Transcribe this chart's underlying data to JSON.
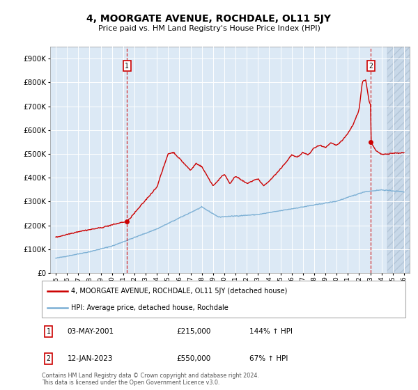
{
  "title": "4, MOORGATE AVENUE, ROCHDALE, OL11 5JY",
  "subtitle": "Price paid vs. HM Land Registry's House Price Index (HPI)",
  "ylim": [
    0,
    950000
  ],
  "yticks": [
    0,
    100000,
    200000,
    300000,
    400000,
    500000,
    600000,
    700000,
    800000,
    900000
  ],
  "xlim_start": 1994.5,
  "xlim_end": 2026.5,
  "xtick_years": [
    1995,
    1996,
    1997,
    1998,
    1999,
    2000,
    2001,
    2002,
    2003,
    2004,
    2005,
    2006,
    2007,
    2008,
    2009,
    2010,
    2011,
    2012,
    2013,
    2014,
    2015,
    2016,
    2017,
    2018,
    2019,
    2020,
    2021,
    2022,
    2023,
    2024,
    2025,
    2026
  ],
  "hpi_color": "#7bafd4",
  "price_color": "#cc0000",
  "marker1_x": 2001.34,
  "marker1_y": 215000,
  "marker2_x": 2023.04,
  "marker2_y": 550000,
  "legend_label1": "4, MOORGATE AVENUE, ROCHDALE, OL11 5JY (detached house)",
  "legend_label2": "HPI: Average price, detached house, Rochdale",
  "annotation1_label": "1",
  "annotation1_date": "03-MAY-2001",
  "annotation1_price": "£215,000",
  "annotation1_hpi": "144% ↑ HPI",
  "annotation2_label": "2",
  "annotation2_date": "12-JAN-2023",
  "annotation2_price": "£550,000",
  "annotation2_hpi": "67% ↑ HPI",
  "footer1": "Contains HM Land Registry data © Crown copyright and database right 2024.",
  "footer2": "This data is licensed under the Open Government Licence v3.0.",
  "plot_bg_color": "#dce9f5",
  "hatch_start": 2024.5
}
